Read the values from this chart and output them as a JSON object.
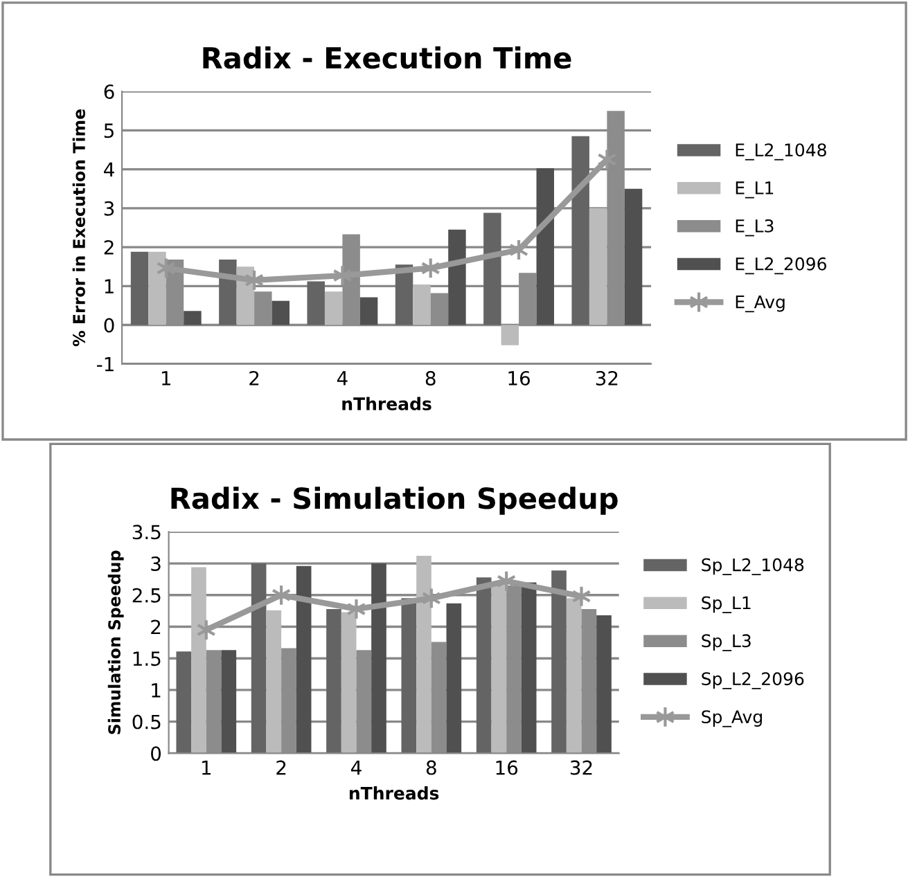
{
  "chart_data": [
    {
      "type": "bar",
      "title": "Radix - Execution Time",
      "xlabel": "nThreads",
      "ylabel": "% Error in Execution Time",
      "categories": [
        "1",
        "2",
        "4",
        "8",
        "16",
        "32"
      ],
      "series": [
        {
          "name": "E_L2_1048",
          "color": "#646464",
          "values": [
            1.88,
            1.68,
            1.12,
            1.55,
            2.88,
            4.85
          ]
        },
        {
          "name": "E_L1",
          "color": "#bbbbbb",
          "values": [
            1.88,
            1.5,
            0.86,
            1.04,
            -0.52,
            3.0
          ]
        },
        {
          "name": "E_L3",
          "color": "#8c8c8c",
          "values": [
            1.68,
            0.86,
            2.33,
            0.82,
            1.34,
            5.5
          ]
        },
        {
          "name": "E_L2_2096",
          "color": "#505050",
          "values": [
            0.36,
            0.62,
            0.71,
            2.45,
            4.03,
            3.5
          ]
        },
        {
          "name": "E_Avg",
          "color": "#999999",
          "type": "line",
          "values": [
            1.46,
            1.15,
            1.27,
            1.46,
            1.93,
            4.25
          ]
        }
      ],
      "ylim": [
        -1,
        6
      ],
      "yticks": [
        -1,
        0,
        1,
        2,
        3,
        4,
        5,
        6
      ],
      "grid": "y",
      "legend": "right",
      "marker": "cross"
    },
    {
      "type": "bar",
      "title": "Radix - Simulation Speedup",
      "xlabel": "nThreads",
      "ylabel": "Simulation Speedup",
      "categories": [
        "1",
        "2",
        "4",
        "8",
        "16",
        "32"
      ],
      "series": [
        {
          "name": "Sp_L2_1048",
          "color": "#646464",
          "values": [
            1.61,
            3.0,
            2.28,
            2.45,
            2.78,
            2.89
          ]
        },
        {
          "name": "Sp_L1",
          "color": "#bbbbbb",
          "values": [
            2.94,
            2.26,
            2.23,
            3.12,
            2.7,
            2.45
          ]
        },
        {
          "name": "Sp_L3",
          "color": "#8c8c8c",
          "values": [
            1.63,
            1.66,
            1.63,
            1.76,
            2.65,
            2.28
          ]
        },
        {
          "name": "Sp_L2_2096",
          "color": "#505050",
          "values": [
            1.63,
            2.96,
            3.0,
            2.37,
            2.7,
            2.18
          ]
        },
        {
          "name": "Sp_Avg",
          "color": "#999999",
          "type": "line",
          "values": [
            1.95,
            2.5,
            2.28,
            2.45,
            2.72,
            2.48
          ]
        }
      ],
      "ylim": [
        0,
        3.5
      ],
      "yticks": [
        0,
        0.5,
        1,
        1.5,
        2,
        2.5,
        3,
        3.5
      ],
      "grid": "y",
      "legend": "right",
      "marker": "cross"
    }
  ]
}
